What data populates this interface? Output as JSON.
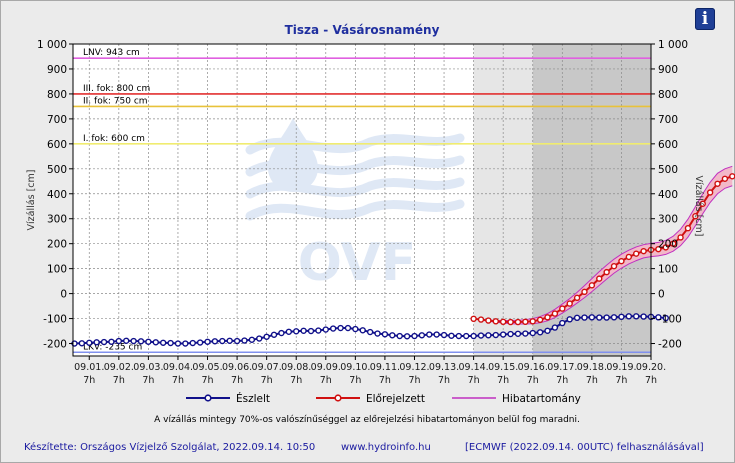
{
  "chart_data": {
    "type": "line",
    "title": "Tisza - Vásárosnamény",
    "ylabel_left": "Vízállás [cm]",
    "ylabel_right": "Vízállás [cm]",
    "ylim": [
      -250,
      1000
    ],
    "yticks": [
      -200,
      -100,
      0,
      100,
      200,
      300,
      400,
      500,
      600,
      700,
      800,
      900,
      1000
    ],
    "ytick_labels": [
      "-200",
      "-100",
      "0",
      "100",
      "200",
      "300",
      "400",
      "500",
      "600",
      "700",
      "800",
      "900",
      "1 000"
    ],
    "x_labels": [
      {
        "date": "09.01.",
        "hour": "7h"
      },
      {
        "date": "09.02.",
        "hour": "7h"
      },
      {
        "date": "09.03.",
        "hour": "7h"
      },
      {
        "date": "09.04.",
        "hour": "7h"
      },
      {
        "date": "09.05.",
        "hour": "7h"
      },
      {
        "date": "09.06.",
        "hour": "7h"
      },
      {
        "date": "09.07.",
        "hour": "7h"
      },
      {
        "date": "09.08.",
        "hour": "7h"
      },
      {
        "date": "09.09.",
        "hour": "7h"
      },
      {
        "date": "09.10.",
        "hour": "7h"
      },
      {
        "date": "09.11.",
        "hour": "7h"
      },
      {
        "date": "09.12.",
        "hour": "7h"
      },
      {
        "date": "09.13.",
        "hour": "7h"
      },
      {
        "date": "09.14.",
        "hour": "7h"
      },
      {
        "date": "09.15.",
        "hour": "7h"
      },
      {
        "date": "09.16.",
        "hour": "7h"
      },
      {
        "date": "09.17.",
        "hour": "7h"
      },
      {
        "date": "09.18.",
        "hour": "7h"
      },
      {
        "date": "09.19.",
        "hour": "7h"
      },
      {
        "date": "09.20.",
        "hour": "7h"
      }
    ],
    "xlim_days": [
      -0.55,
      19.0
    ],
    "forecast_start_day": 13.0,
    "dark_region_start_day": 15.0,
    "grid": true,
    "reference_lines": [
      {
        "label": "LNV: 943 cm",
        "value": 943,
        "color": "#e060e0"
      },
      {
        "label": "III. fok: 800 cm",
        "value": 800,
        "color": "#e23030"
      },
      {
        "label": "II. fok: 750 cm",
        "value": 750,
        "color": "#e8c23a"
      },
      {
        "label": "I. fok: 600 cm",
        "value": 600,
        "color": "#f0ec70"
      },
      {
        "label": "LKV: -235 cm",
        "value": -235,
        "color": "#8090ee"
      }
    ],
    "series": [
      {
        "name": "Észlelt",
        "color": "#10108a",
        "step_days": 0.25,
        "start_day": -0.5,
        "values": [
          -200,
          -199,
          -197,
          -195,
          -194,
          -193,
          -190,
          -189,
          -190,
          -191,
          -193,
          -195,
          -197,
          -198,
          -200,
          -200,
          -198,
          -196,
          -193,
          -191,
          -190,
          -189,
          -190,
          -188,
          -185,
          -180,
          -173,
          -165,
          -158,
          -153,
          -151,
          -149,
          -150,
          -148,
          -144,
          -140,
          -138,
          -138,
          -142,
          -147,
          -154,
          -160,
          -163,
          -167,
          -170,
          -171,
          -170,
          -167,
          -164,
          -164,
          -166,
          -169,
          -170,
          -170,
          -170,
          -168,
          -167,
          -166,
          -164,
          -162,
          -161,
          -160,
          -158,
          -155,
          -149,
          -136,
          -118,
          -103,
          -97,
          -96,
          -95,
          -96,
          -96,
          -95,
          -93,
          -91,
          -91,
          -92,
          -93,
          -95,
          -98
        ]
      },
      {
        "name": "Előrejelzett",
        "color": "#d01010",
        "step_days": 0.25,
        "start_day": 13.0,
        "values": [
          -101,
          -104,
          -108,
          -111,
          -113,
          -114,
          -114,
          -113,
          -111,
          -105,
          -95,
          -80,
          -60,
          -40,
          -17,
          7,
          33,
          60,
          86,
          110,
          130,
          147,
          160,
          170,
          175,
          178,
          185,
          200,
          225,
          262,
          310,
          360,
          405,
          440,
          460,
          470
        ]
      },
      {
        "name": "Hibatartomány",
        "color": "#c030c0",
        "step_days": 0.25,
        "start_day": 13.0,
        "upper": [
          -100,
          -103,
          -106,
          -108,
          -108,
          -108,
          -107,
          -104,
          -100,
          -92,
          -80,
          -63,
          -42,
          -20,
          5,
          32,
          60,
          88,
          114,
          138,
          158,
          174,
          187,
          196,
          201,
          205,
          213,
          230,
          258,
          298,
          348,
          400,
          446,
          482,
          500,
          510
        ],
        "lower": [
          -102,
          -106,
          -111,
          -115,
          -118,
          -121,
          -122,
          -122,
          -121,
          -117,
          -109,
          -96,
          -78,
          -59,
          -38,
          -16,
          8,
          33,
          58,
          82,
          102,
          119,
          132,
          143,
          148,
          151,
          157,
          170,
          192,
          226,
          272,
          320,
          365,
          400,
          422,
          432
        ]
      }
    ]
  },
  "legend": [
    {
      "label": "Észlelt",
      "color": "#10108a",
      "kind": "observed"
    },
    {
      "label": "Előrejelzett",
      "color": "#d01010",
      "kind": "forecast"
    },
    {
      "label": "Hibatartomány",
      "color": "#c030c0",
      "kind": "error"
    }
  ],
  "note": "A vízállás mintegy 70%-os valószínűséggel az előrejelzési hibatartományon belül fog maradni.",
  "footer": {
    "creator": "Készítette: Országos Vízjelző Szolgálat, 2022.09.14. 10:50",
    "url": "www.hydroinfo.hu",
    "model": "[ECMWF (2022.09.14. 00UTC) felhasználásával]"
  },
  "watermark": {
    "text": "OVF",
    "icon": "ovf-water-drop-logo"
  },
  "info_button": {
    "label": "i",
    "icon": "info-icon"
  },
  "colors": {
    "title": "#1f2f9f",
    "observed": "#10108a",
    "forecast": "#d01010",
    "error_band": "#f2b8c8",
    "forecast_bg_light": "#e6e6e6",
    "forecast_bg_dark": "#c8c8c8"
  }
}
